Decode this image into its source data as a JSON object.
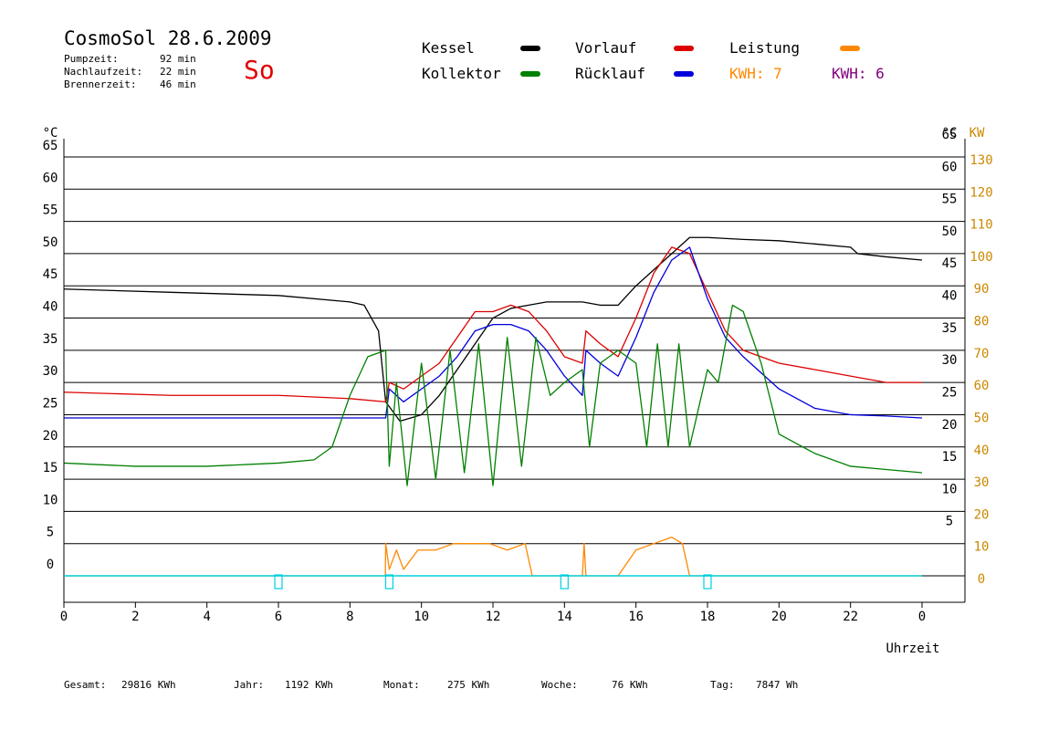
{
  "header": {
    "title": "CosmoSol 28.6.2009",
    "day": "So",
    "info": [
      {
        "label": "Pumpzeit:",
        "value": "92 min"
      },
      {
        "label": "Nachlaufzeit:",
        "value": "22 min"
      },
      {
        "label": "Brennerzeit:",
        "value": "46 min"
      }
    ]
  },
  "legend": [
    {
      "label": "Kessel",
      "color": "#000000"
    },
    {
      "label": "Vorlauf",
      "color": "#dd0000"
    },
    {
      "label": "Leistung",
      "color": "#ff8800"
    },
    {
      "label": "Kollektor",
      "color": "#008000"
    },
    {
      "label": "Rücklauf",
      "color": "#0000dd"
    }
  ],
  "kwh": [
    {
      "label": "KWH: 7",
      "color": "#ff8800"
    },
    {
      "label": "KWH: 6",
      "color": "#800080"
    }
  ],
  "footer": [
    {
      "label": "Gesamt:",
      "value": "29816 KWh"
    },
    {
      "label": "Jahr:",
      "value": "1192 KWh"
    },
    {
      "label": "Monat:",
      "value": "275 KWh"
    },
    {
      "label": "Woche:",
      "value": "76 KWh"
    },
    {
      "label": "Tag:",
      "value": "7847 Wh"
    }
  ],
  "chart_data": {
    "type": "line",
    "xlabel": "Uhrzeit",
    "ylabel_left": "°C",
    "ylabel_right_temp": "°C",
    "ylabel_right_power": "KW",
    "x_ticks": [
      "0",
      "2",
      "4",
      "6",
      "8",
      "10",
      "12",
      "14",
      "16",
      "18",
      "20",
      "22",
      "0"
    ],
    "y_ticks": [
      "0",
      "5",
      "10",
      "15",
      "20",
      "25",
      "30",
      "35",
      "40",
      "45",
      "50",
      "55",
      "60",
      "65"
    ],
    "y_ticks_right_temp": [
      "5",
      "10",
      "15",
      "20",
      "25",
      "30",
      "35",
      "40",
      "45",
      "50",
      "55",
      "60",
      "65"
    ],
    "y_ticks_right_power": [
      "0",
      "10",
      "20",
      "30",
      "40",
      "50",
      "60",
      "70",
      "80",
      "90",
      "100",
      "110",
      "120",
      "130"
    ],
    "xlim": [
      0,
      24
    ],
    "ylim": [
      -2,
      70
    ],
    "grid": "horizontal",
    "series": [
      {
        "name": "Kessel",
        "color": "#000000",
        "x": [
          0,
          3,
          6,
          8,
          8.4,
          8.8,
          9.0,
          9.4,
          10,
          10.5,
          11,
          11.5,
          12,
          12.5,
          13,
          13.5,
          14,
          14.5,
          15,
          15.5,
          16,
          16.4,
          16.8,
          17.2,
          17.5,
          18,
          19,
          20,
          21,
          22,
          22.2,
          23,
          24
        ],
        "y": [
          44.5,
          44,
          43.5,
          42.5,
          42,
          38,
          27,
          24,
          25,
          28,
          32,
          36,
          40,
          41.5,
          42,
          42.5,
          42.5,
          42.5,
          42,
          42,
          45,
          47,
          49,
          51,
          52.5,
          52.5,
          52.2,
          52,
          51.5,
          51,
          50,
          49.5,
          49
        ]
      },
      {
        "name": "Vorlauf",
        "color": "#dd0000",
        "x": [
          0,
          3,
          6,
          8,
          9,
          9.1,
          9.5,
          10,
          10.5,
          11,
          11.5,
          12,
          12.5,
          13,
          13.5,
          14,
          14.5,
          14.6,
          15,
          15.5,
          16,
          16.5,
          17,
          17.5,
          18,
          18.5,
          19,
          20,
          21,
          22,
          23,
          24
        ],
        "y": [
          28.5,
          28,
          28,
          27.5,
          27,
          30,
          29,
          31,
          33,
          37,
          41,
          41,
          42,
          41,
          38,
          34,
          33,
          38,
          36,
          34,
          40,
          47,
          51,
          50,
          44,
          38,
          35,
          33,
          32,
          31,
          30,
          30
        ]
      },
      {
        "name": "Rücklauf",
        "color": "#0000dd",
        "x": [
          0,
          3,
          6,
          8,
          9,
          9.1,
          9.5,
          10,
          10.5,
          11,
          11.5,
          12,
          12.5,
          13,
          13.5,
          14,
          14.5,
          14.6,
          15,
          15.5,
          16,
          16.5,
          17,
          17.5,
          18,
          18.5,
          19,
          20,
          21,
          22,
          23,
          24
        ],
        "y": [
          24.5,
          24.5,
          24.5,
          24.5,
          24.5,
          29,
          27,
          29,
          31,
          34,
          38,
          39,
          39,
          38,
          35,
          31,
          28,
          35,
          33,
          31,
          37,
          44,
          49,
          51,
          43,
          37,
          34,
          29,
          26,
          25,
          24.8,
          24.5
        ]
      },
      {
        "name": "Kollektor",
        "color": "#008000",
        "x": [
          0,
          2,
          4,
          6,
          7,
          7.5,
          8,
          8.5,
          9,
          9.1,
          9.3,
          9.6,
          10,
          10.4,
          10.8,
          11.2,
          11.6,
          12,
          12.4,
          12.8,
          13.2,
          13.6,
          14,
          14.5,
          14.7,
          15,
          15.5,
          16,
          16.3,
          16.6,
          16.9,
          17.2,
          17.5,
          18,
          18.3,
          18.7,
          19,
          19.5,
          20,
          21,
          22,
          23,
          24
        ],
        "y": [
          17.5,
          17,
          17,
          17.5,
          18,
          20,
          28,
          34,
          35,
          17,
          30,
          14,
          33,
          15,
          35,
          16,
          36,
          14,
          37,
          17,
          37,
          28,
          30,
          32,
          20,
          33,
          35,
          33,
          20,
          36,
          20,
          36,
          20,
          32,
          30,
          42,
          41,
          33,
          22,
          19,
          17,
          16.5,
          16
        ]
      },
      {
        "name": "Leistung",
        "color": "#ff8800",
        "x": [
          0,
          8.99,
          9.0,
          9.1,
          9.3,
          9.5,
          9.9,
          10.4,
          10.9,
          11.4,
          11.9,
          12.4,
          12.9,
          13.1,
          14.5,
          14.55,
          14.6,
          15.5,
          16.0,
          16.5,
          17.0,
          17.3,
          17.5,
          24
        ],
        "y": [
          0,
          0,
          5,
          1,
          4,
          1,
          4,
          4,
          5,
          5,
          5,
          4,
          5,
          0,
          0,
          5,
          0,
          0,
          4,
          5,
          6,
          5,
          0,
          0
        ]
      }
    ],
    "bottom_markers_hours": [
      6.0,
      9.1,
      14.0,
      18.0
    ]
  }
}
